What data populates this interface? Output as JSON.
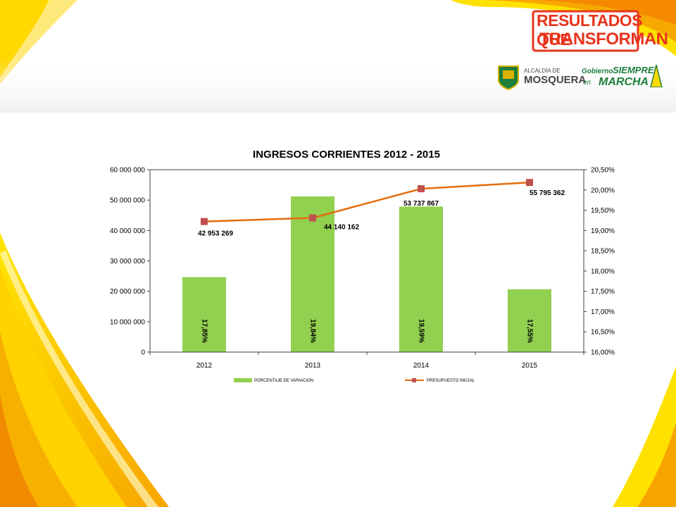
{
  "badge": {
    "line1": "RESULTADOS QUE",
    "line2": "TRANSFORMAN"
  },
  "logos": {
    "alcaldia_small": "ALCALDÍA DE",
    "alcaldia_big": "MOSQUERA",
    "gobierno_1": "Gobierno",
    "gobierno_2": "SIEMPRE",
    "gobierno_3": "en",
    "gobierno_4": "MARCHA"
  },
  "colors": {
    "bar": "#92d050",
    "line": "#e46c0a",
    "marker": "#c0504d",
    "axis": "#404040"
  },
  "chart_data": {
    "type": "bar",
    "title": "INGRESOS CORRIENTES 2012 - 2015",
    "categories": [
      "2012",
      "2013",
      "2014",
      "2015"
    ],
    "series": [
      {
        "name": "PORCENTAJE DE VARIACION",
        "type": "bar",
        "axis": "right",
        "values": [
          17.85,
          19.84,
          19.59,
          17.55
        ],
        "labels": [
          "17,85%",
          "19,84%",
          "19,59%",
          "17,55%"
        ]
      },
      {
        "name": "PRESUPUESTO INICIAL",
        "type": "line",
        "axis": "left",
        "values": [
          42953269,
          44140162,
          53737867,
          55795362
        ],
        "labels": [
          "42 953 269",
          "44 140 162",
          "53 737 867",
          "55 795 362"
        ]
      }
    ],
    "y_left": {
      "min": 0,
      "max": 60000000,
      "ticks": [
        "0",
        "10 000 000",
        "20 000 000",
        "30 000 000",
        "40 000 000",
        "50 000 000",
        "60 000 000"
      ]
    },
    "y_right": {
      "min": 16,
      "max": 20.5,
      "ticks": [
        "16,00%",
        "16,50%",
        "17,00%",
        "17,50%",
        "18,00%",
        "18,50%",
        "19,00%",
        "19,50%",
        "20,00%",
        "20,50%"
      ]
    },
    "grid": false,
    "legend": "bottom"
  }
}
